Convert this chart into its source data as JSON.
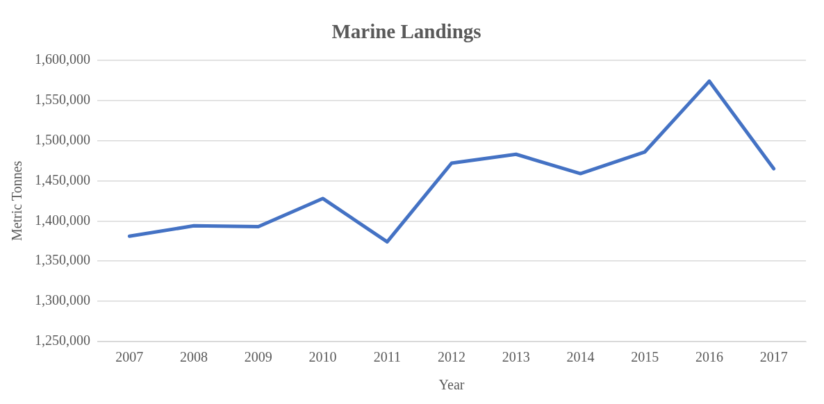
{
  "chart_data": {
    "type": "line",
    "title": "Marine Landings",
    "xlabel": "Year",
    "ylabel": "Metric Tonnes",
    "categories": [
      "2007",
      "2008",
      "2009",
      "2010",
      "2011",
      "2012",
      "2013",
      "2014",
      "2015",
      "2016",
      "2017"
    ],
    "series": [
      {
        "color": "#4472c4",
        "values": [
          1381000,
          1394000,
          1393000,
          1428000,
          1374000,
          1472000,
          1483000,
          1459000,
          1486000,
          1574000,
          1465000
        ]
      }
    ],
    "ylim": [
      1250000,
      1600000
    ],
    "yticks": [
      {
        "value": 1250000,
        "label": "1,250,000"
      },
      {
        "value": 1300000,
        "label": "1,300,000"
      },
      {
        "value": 1350000,
        "label": "1,350,000"
      },
      {
        "value": 1400000,
        "label": "1,400,000"
      },
      {
        "value": 1450000,
        "label": "1,450,000"
      },
      {
        "value": 1500000,
        "label": "1,500,000"
      },
      {
        "value": 1550000,
        "label": "1,550,000"
      },
      {
        "value": 1600000,
        "label": "1,600,000"
      }
    ],
    "grid": "y",
    "legend": false,
    "marker": "none",
    "line_style": "solid"
  }
}
